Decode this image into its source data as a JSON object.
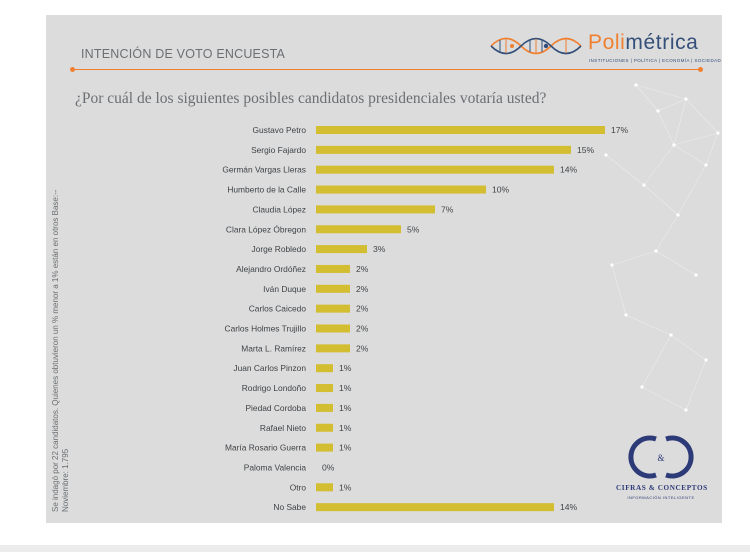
{
  "header": {
    "title": "INTENCIÓN DE VOTO ENCUESTA",
    "brand_part1": "Poli",
    "brand_part2": "métrica",
    "brand_tagline": "INSTITUCIONES | POLÍTICA | ECONOMÍA | SOCIEDAD"
  },
  "side_note": "Se indagó por 22 candidatos. Quienes obtuvieron un % menor a 1% están en otros Base:-- Noviembre: 1.795",
  "partner": {
    "name": "CIFRAS & CONCEPTOS",
    "tagline": "INFORMACIÓN INTELIGENTE"
  },
  "colors": {
    "bar": "#d3bd30",
    "accent": "#f08030",
    "brand_dark": "#34507a",
    "background": "#dcdcdc"
  },
  "chart_data": {
    "type": "bar",
    "orientation": "horizontal",
    "title": "¿Por cuál de los siguientes posibles candidatos presidenciales votaría usted?",
    "categories": [
      "Gustavo Petro",
      "Sergio Fajardo",
      "Germán Vargas Lleras",
      "Humberto de la Calle",
      "Claudia López",
      "Clara López Óbregon",
      "Jorge Robledo",
      "Alejandro Ordóñez",
      "Iván Duque",
      "Carlos Caicedo",
      "Carlos Holmes Trujillo",
      "Marta L. Ramírez",
      "Juan Carlos Pinzon",
      "Rodrigo Londoño",
      "Piedad Cordoba",
      "Rafael Nieto",
      "María Rosario Guerra",
      "Paloma Valencia",
      "Otro",
      "No Sabe"
    ],
    "values": [
      17,
      15,
      14,
      10,
      7,
      5,
      3,
      2,
      2,
      2,
      2,
      2,
      1,
      1,
      1,
      1,
      1,
      0,
      1,
      14
    ],
    "labels": [
      "17%",
      "15%",
      "14%",
      "10%",
      "7%",
      "5%",
      "3%",
      "2%",
      "2%",
      "2%",
      "2%",
      "2%",
      "1%",
      "1%",
      "1%",
      "1%",
      "1%",
      "0%",
      "1%",
      "14%"
    ],
    "xlim": [
      0,
      17
    ],
    "unit": "%"
  }
}
